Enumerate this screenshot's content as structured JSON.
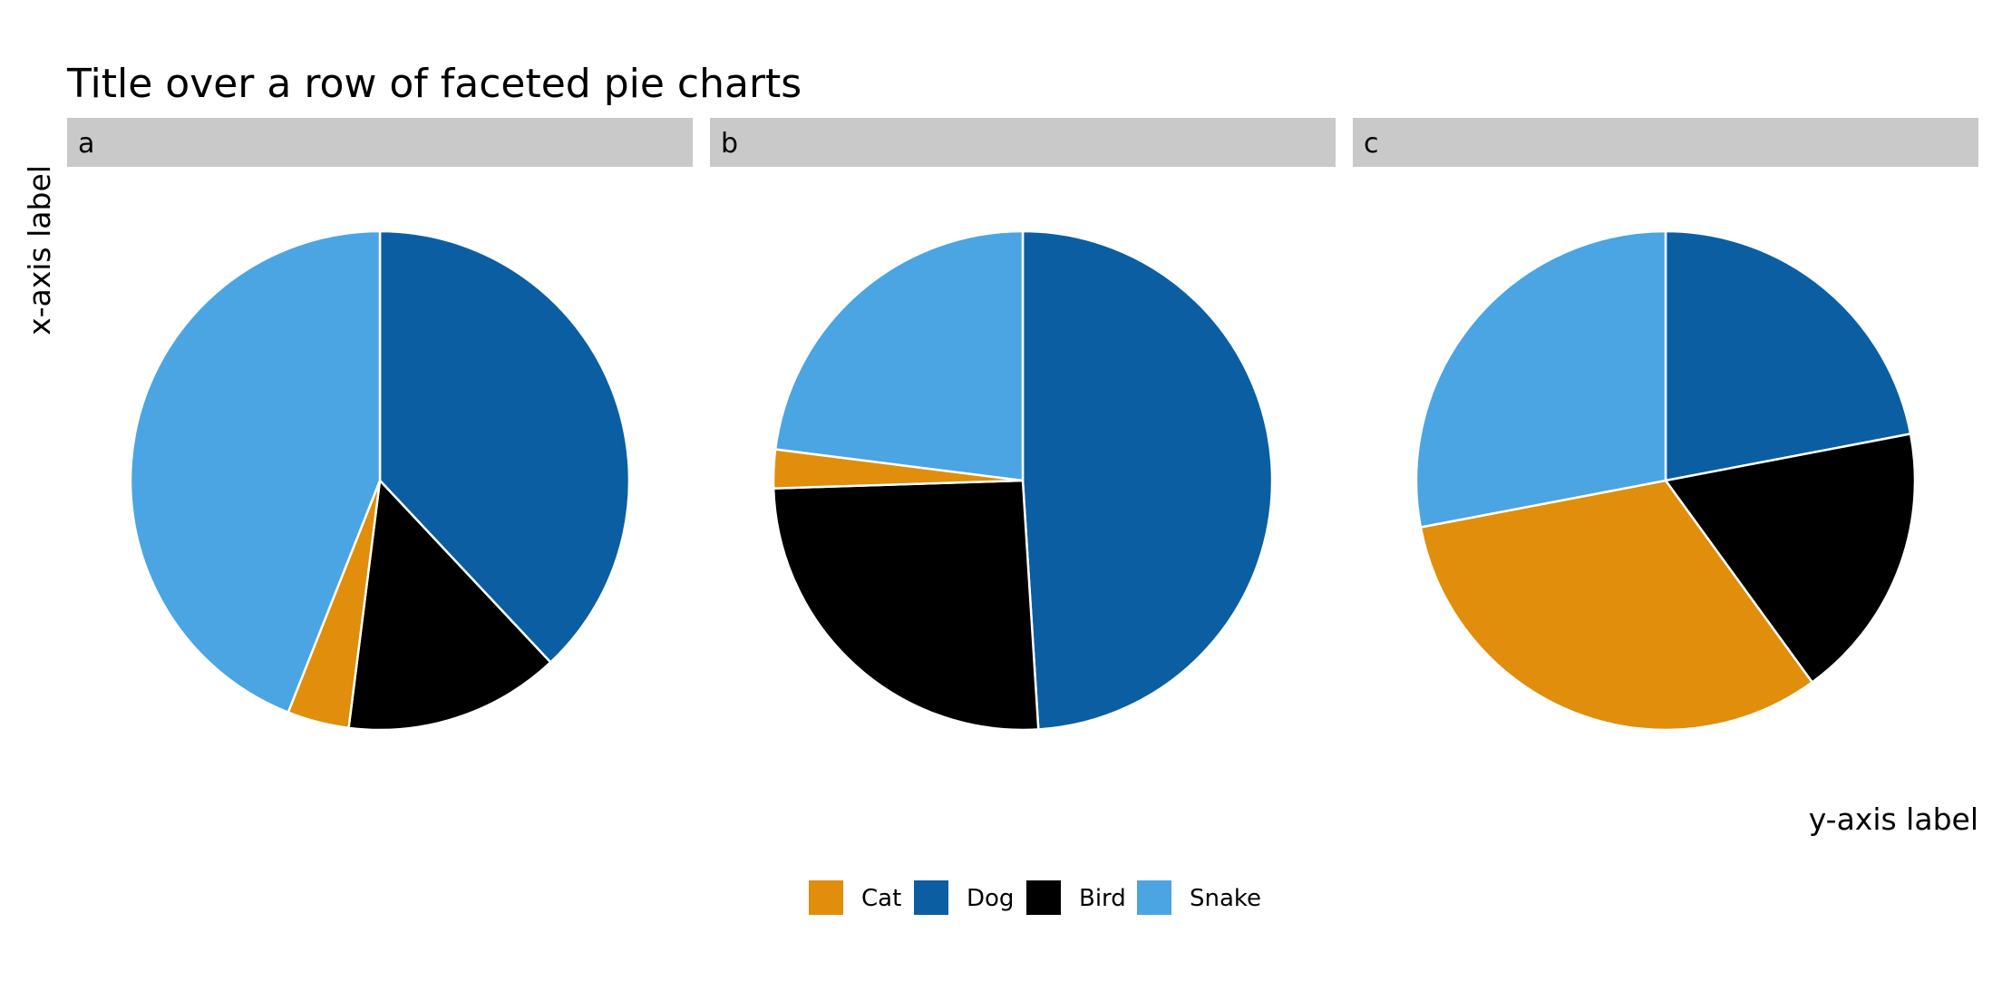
{
  "chart_data": {
    "type": "pie",
    "title": "Title over a row of faceted pie charts",
    "xlabel": "x-axis label",
    "ylabel": "y-axis label",
    "categories": [
      "Cat",
      "Dog",
      "Bird",
      "Snake"
    ],
    "colors": {
      "Cat": "#E08E0B",
      "Dog": "#0B5EA2",
      "Bird": "#000000",
      "Snake": "#4AA5E2"
    },
    "strip_color": "#C9C9C9",
    "slice_order": [
      "Dog",
      "Bird",
      "Cat",
      "Snake"
    ],
    "legend_position": "bottom",
    "facets": [
      {
        "label": "a",
        "values": {
          "Cat": 4,
          "Dog": 38,
          "Bird": 14,
          "Snake": 44
        }
      },
      {
        "label": "b",
        "values": {
          "Cat": 2.5,
          "Dog": 49,
          "Bird": 25.5,
          "Snake": 23
        }
      },
      {
        "label": "c",
        "values": {
          "Cat": 32,
          "Dog": 22,
          "Bird": 18,
          "Snake": 28
        }
      }
    ]
  }
}
